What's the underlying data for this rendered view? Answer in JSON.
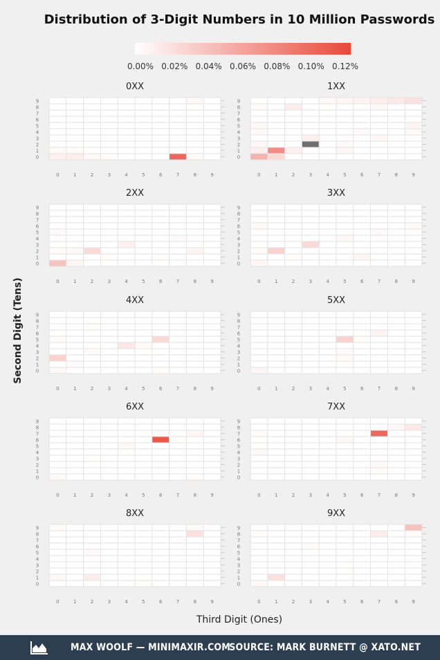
{
  "chart_data": {
    "type": "heatmap",
    "title": "Distribution of 3-Digit Numbers in 10 Million Passwords",
    "xlabel": "Third Digit (Ones)",
    "ylabel": "Second Digit (Tens)",
    "x_ticks": [
      "0",
      "1",
      "2",
      "3",
      "4",
      "5",
      "6",
      "7",
      "8",
      "9"
    ],
    "y_ticks": [
      "0",
      "1",
      "2",
      "3",
      "4",
      "5",
      "6",
      "7",
      "8",
      "9"
    ],
    "legend": {
      "position": "top",
      "ticks": [
        "0.00%",
        "0.02%",
        "0.04%",
        "0.06%",
        "0.08%",
        "0.10%",
        "0.12%"
      ],
      "range": [
        0,
        0.12
      ],
      "color_low": "#ffffff",
      "color_high": "#e8493a"
    },
    "missing_color": "#6e6e6e",
    "panels": [
      {
        "title": "0XX",
        "cells": [
          [
            0,
            0,
            0.01
          ],
          [
            1,
            0,
            0.012
          ],
          [
            2,
            0,
            0.004
          ],
          [
            7,
            0,
            0.1
          ],
          [
            8,
            0,
            0.003
          ],
          [
            0,
            1,
            0.003
          ],
          [
            8,
            9,
            0.004
          ],
          [
            1,
            1,
            0.002
          ],
          [
            3,
            0,
            0.002
          ]
        ]
      },
      {
        "title": "1XX",
        "cells": [
          [
            0,
            0,
            0.05
          ],
          [
            1,
            0,
            0.025
          ],
          [
            1,
            1,
            0.075
          ],
          [
            2,
            1,
            0.01
          ],
          [
            0,
            1,
            0.01
          ],
          [
            3,
            2,
            null
          ],
          [
            0,
            2,
            0.006
          ],
          [
            3,
            3,
            0.01
          ],
          [
            2,
            8,
            0.012
          ],
          [
            7,
            9,
            0.012
          ],
          [
            8,
            9,
            0.014
          ],
          [
            9,
            9,
            0.02
          ],
          [
            6,
            9,
            0.008
          ],
          [
            5,
            9,
            0.006
          ],
          [
            9,
            5,
            0.006
          ],
          [
            7,
            3,
            0.005
          ],
          [
            0,
            5,
            0.005
          ],
          [
            5,
            1,
            0.006
          ],
          [
            4,
            9,
            0.004
          ],
          [
            0,
            4,
            0.004
          ],
          [
            5,
            2,
            0.004
          ],
          [
            7,
            8,
            0.004
          ],
          [
            0,
            8,
            0.003
          ],
          [
            6,
            4,
            0.003
          ],
          [
            9,
            4,
            0.003
          ]
        ]
      },
      {
        "title": "2XX",
        "cells": [
          [
            0,
            0,
            0.04
          ],
          [
            1,
            0,
            0.006
          ],
          [
            2,
            2,
            0.025
          ],
          [
            4,
            3,
            0.01
          ],
          [
            8,
            2,
            0.006
          ],
          [
            0,
            5,
            0.003
          ],
          [
            0,
            2,
            0.003
          ],
          [
            1,
            2,
            0.004
          ],
          [
            7,
            4,
            0.003
          ],
          [
            6,
            1,
            0.002
          ],
          [
            3,
            1,
            0.002
          ],
          [
            5,
            4,
            0.002
          ]
        ]
      },
      {
        "title": "3XX",
        "cells": [
          [
            1,
            2,
            0.03
          ],
          [
            3,
            3,
            0.025
          ],
          [
            0,
            0,
            0.005
          ],
          [
            6,
            1,
            0.006
          ],
          [
            5,
            4,
            0.005
          ],
          [
            0,
            6,
            0.004
          ],
          [
            9,
            6,
            0.004
          ],
          [
            7,
            5,
            0.003
          ],
          [
            0,
            2,
            0.003
          ],
          [
            2,
            1,
            0.002
          ]
        ]
      },
      {
        "title": "4XX",
        "cells": [
          [
            0,
            2,
            0.03
          ],
          [
            6,
            5,
            0.025
          ],
          [
            4,
            4,
            0.015
          ],
          [
            0,
            0,
            0.004
          ],
          [
            1,
            1,
            0.003
          ],
          [
            2,
            3,
            0.003
          ],
          [
            0,
            5,
            0.003
          ],
          [
            5,
            4,
            0.003
          ],
          [
            2,
            7,
            0.002
          ],
          [
            6,
            0,
            0.002
          ]
        ]
      },
      {
        "title": "5XX",
        "cells": [
          [
            5,
            5,
            0.03
          ],
          [
            7,
            6,
            0.007
          ],
          [
            0,
            0,
            0.006
          ],
          [
            5,
            3,
            0.003
          ],
          [
            5,
            2,
            0.003
          ],
          [
            2,
            1,
            0.002
          ],
          [
            6,
            5,
            0.002
          ],
          [
            5,
            1,
            0.002
          ]
        ]
      },
      {
        "title": "6XX",
        "cells": [
          [
            6,
            6,
            0.11
          ],
          [
            8,
            7,
            0.006
          ],
          [
            4,
            5,
            0.004
          ],
          [
            6,
            7,
            0.004
          ],
          [
            0,
            0,
            0.003
          ],
          [
            6,
            2,
            0.002
          ],
          [
            7,
            6,
            0.002
          ],
          [
            2,
            3,
            0.002
          ],
          [
            8,
            0,
            0.002
          ]
        ]
      },
      {
        "title": "7XX",
        "cells": [
          [
            7,
            7,
            0.1
          ],
          [
            9,
            8,
            0.015
          ],
          [
            8,
            8,
            0.006
          ],
          [
            0,
            4,
            0.004
          ],
          [
            5,
            6,
            0.004
          ],
          [
            7,
            2,
            0.003
          ],
          [
            0,
            7,
            0.003
          ],
          [
            1,
            1,
            0.002
          ],
          [
            7,
            1,
            0.002
          ]
        ]
      },
      {
        "title": "8XX",
        "cells": [
          [
            8,
            8,
            0.02
          ],
          [
            2,
            1,
            0.012
          ],
          [
            0,
            9,
            0.003
          ],
          [
            0,
            1,
            0.004
          ],
          [
            2,
            5,
            0.003
          ],
          [
            8,
            9,
            0.003
          ],
          [
            5,
            0,
            0.002
          ],
          [
            7,
            7,
            0.002
          ]
        ]
      },
      {
        "title": "9XX",
        "cells": [
          [
            9,
            9,
            0.04
          ],
          [
            7,
            8,
            0.012
          ],
          [
            1,
            1,
            0.02
          ],
          [
            0,
            0,
            0.004
          ],
          [
            3,
            6,
            0.003
          ],
          [
            5,
            2,
            0.002
          ],
          [
            0,
            8,
            0.002
          ],
          [
            8,
            5,
            0.002
          ],
          [
            9,
            8,
            0.003
          ]
        ]
      }
    ]
  },
  "footer": {
    "left_text": "MAX WOOLF — MINIMAXIR.COM",
    "right_text": "SOURCE: MARK BURNETT @ XATO.NET",
    "logo_icon": "chart-area-icon"
  }
}
